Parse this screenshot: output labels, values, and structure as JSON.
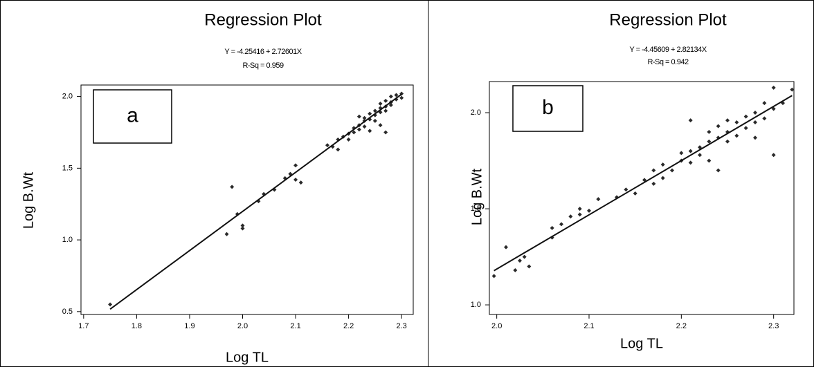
{
  "chart_data": [
    {
      "type": "scatter",
      "title": "Regression Plot",
      "equation": "Y = -4.25416 + 2.72601X",
      "r_squared": "R-Sq = 0.959",
      "panel_label": "a",
      "x_label": "Log TL",
      "y_label": "Log B.Wt",
      "color": "#2a2a2a",
      "xlim": [
        1.695,
        2.322
      ],
      "ylim": [
        0.48,
        2.08
      ],
      "xticks": [
        1.7,
        1.8,
        1.9,
        {
          "value": 2,
          "label": "2.0"
        },
        2.1,
        2.2,
        2.3
      ],
      "yticks": [
        0.5,
        {
          "value": 1,
          "label": "1.0"
        },
        1.5,
        {
          "value": 2,
          "label": "2.0"
        }
      ],
      "x": [
        1.75,
        1.97,
        1.98,
        1.99,
        2.0,
        2.0,
        2.03,
        2.04,
        2.06,
        2.08,
        2.09,
        2.1,
        2.1,
        2.11,
        2.16,
        2.17,
        2.18,
        2.18,
        2.19,
        2.2,
        2.2,
        2.21,
        2.21,
        2.22,
        2.22,
        2.23,
        2.23,
        2.23,
        2.24,
        2.24,
        2.24,
        2.25,
        2.25,
        2.25,
        2.26,
        2.26,
        2.26,
        2.26,
        2.27,
        2.27,
        2.27,
        2.28,
        2.28,
        2.28,
        2.29,
        2.29,
        2.3,
        2.22,
        2.27,
        2.3
      ],
      "values": [
        0.55,
        1.04,
        1.37,
        1.18,
        1.1,
        1.08,
        1.27,
        1.32,
        1.35,
        1.43,
        1.46,
        1.52,
        1.42,
        1.4,
        1.66,
        1.65,
        1.63,
        1.7,
        1.72,
        1.74,
        1.7,
        1.78,
        1.75,
        1.8,
        1.77,
        1.83,
        1.79,
        1.85,
        1.84,
        1.88,
        1.76,
        1.87,
        1.9,
        1.83,
        1.92,
        1.89,
        1.95,
        1.8,
        1.93,
        1.9,
        1.97,
        1.96,
        2.0,
        1.94,
        2.01,
        1.98,
        2.02,
        1.86,
        1.75,
        1.99
      ],
      "fit": {
        "x": [
          1.75,
          2.3
        ],
        "y": [
          0.517,
          2.016
        ]
      }
    },
    {
      "type": "scatter",
      "title": "Regression Plot",
      "equation": "Y = -4.45609 + 2.82134X",
      "r_squared": "R-Sq = 0.942",
      "panel_label": "b",
      "x_label": "Log TL",
      "y_label": "Log B.Wt",
      "color": "#2a2a2a",
      "xlim": [
        1.992,
        2.322
      ],
      "ylim": [
        0.95,
        2.162
      ],
      "xticks": [
        {
          "value": 2,
          "label": "2.0"
        },
        2.1,
        2.2,
        2.3
      ],
      "yticks": [
        {
          "value": 1,
          "label": "1.0"
        },
        1.5,
        {
          "value": 2,
          "label": "2.0"
        }
      ],
      "x": [
        1.997,
        2.01,
        2.02,
        2.025,
        2.03,
        2.035,
        2.06,
        2.06,
        2.07,
        2.08,
        2.09,
        2.09,
        2.1,
        2.11,
        2.13,
        2.14,
        2.15,
        2.16,
        2.17,
        2.17,
        2.18,
        2.18,
        2.19,
        2.2,
        2.2,
        2.21,
        2.21,
        2.21,
        2.22,
        2.22,
        2.23,
        2.23,
        2.23,
        2.24,
        2.24,
        2.24,
        2.25,
        2.25,
        2.25,
        2.26,
        2.26,
        2.27,
        2.27,
        2.28,
        2.28,
        2.29,
        2.29,
        2.3,
        2.3,
        2.3,
        2.31,
        2.32,
        2.28
      ],
      "values": [
        1.15,
        1.3,
        1.18,
        1.23,
        1.25,
        1.2,
        1.35,
        1.4,
        1.42,
        1.46,
        1.47,
        1.5,
        1.49,
        1.55,
        1.56,
        1.6,
        1.58,
        1.65,
        1.63,
        1.7,
        1.73,
        1.66,
        1.7,
        1.75,
        1.79,
        1.8,
        1.74,
        1.96,
        1.82,
        1.78,
        1.85,
        1.9,
        1.75,
        1.87,
        1.93,
        1.7,
        1.9,
        1.85,
        1.96,
        1.95,
        1.88,
        1.98,
        1.92,
        2.0,
        1.95,
        2.05,
        1.97,
        2.13,
        1.78,
        2.02,
        2.05,
        2.12,
        1.87
      ],
      "fit": {
        "x": [
          1.997,
          2.32
        ],
        "y": [
          1.178,
          2.089
        ]
      }
    }
  ]
}
